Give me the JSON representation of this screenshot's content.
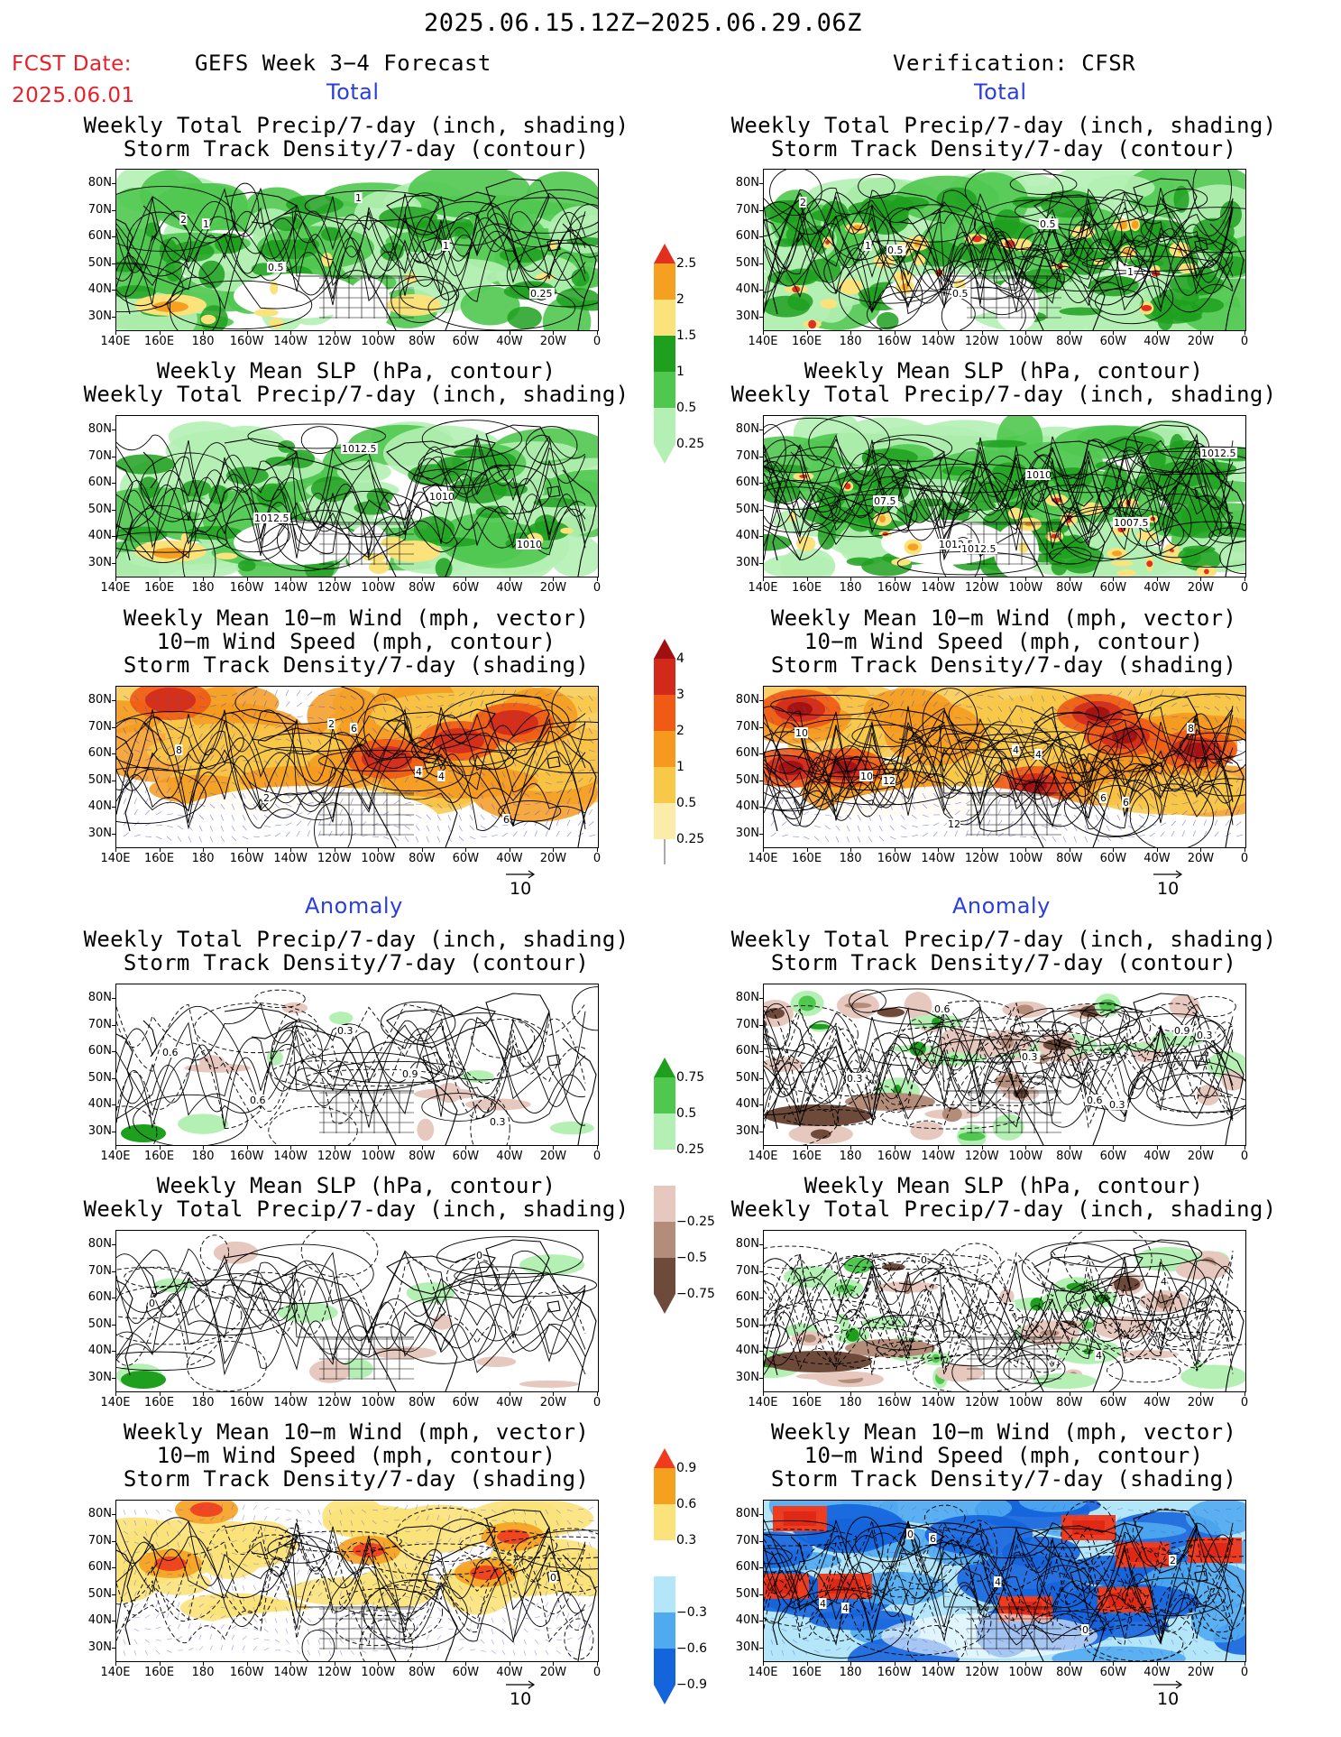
{
  "header": {
    "date_range": "2025.06.15.12Z−2025.06.29.06Z",
    "fcst_label": "FCST Date:",
    "fcst_date": "2025.06.01",
    "left_title": "GEFS Week 3−4 Forecast",
    "right_title": "Verification: CFSR"
  },
  "sections": {
    "total": "Total",
    "anomaly": "Anomaly"
  },
  "titles": {
    "precip_storm": [
      "Weekly Total Precip/7-day (inch, shading)",
      "Storm Track Density/7-day (contour)"
    ],
    "slp_precip": [
      "Weekly Mean SLP (hPa, contour)",
      "Weekly Total Precip/7-day (inch, shading)"
    ],
    "wind_storm": [
      "Weekly Mean 10−m Wind (mph, vector)",
      "10−m Wind Speed (mph, contour)",
      "Storm Track Density/7-day (shading)"
    ]
  },
  "axes": {
    "lat_labels": [
      "80N",
      "70N",
      "60N",
      "50N",
      "40N",
      "30N"
    ],
    "lon_labels": [
      "140E",
      "160E",
      "180",
      "160W",
      "140W",
      "120W",
      "100W",
      "80W",
      "60W",
      "40W",
      "20W",
      "0"
    ]
  },
  "vector_ref": "10",
  "colorbars": {
    "precip_total": {
      "labels": [
        "2.5",
        "2",
        "1.5",
        "1",
        "0.5",
        "0.25"
      ],
      "colors": [
        "#e0301e",
        "#f5a020",
        "#fbe27a",
        "#1ea01e",
        "#50c850",
        "#b4f0b4"
      ]
    },
    "storm_total": {
      "labels": [
        "4",
        "3",
        "2",
        "1",
        "0.5",
        "0.25"
      ],
      "colors": [
        "#a01010",
        "#d22a1a",
        "#f05a14",
        "#f59a1e",
        "#f8c848",
        "#fcecaa"
      ]
    },
    "precip_anom": {
      "labels": [
        "0.75",
        "0.5",
        "0.25",
        "−0.25",
        "−0.5",
        "−0.75"
      ],
      "colors": [
        "#1ea01e",
        "#50c850",
        "#b4f0b4",
        "#e6c8be",
        "#b48c7a",
        "#6e4a3a"
      ]
    },
    "storm_anom": {
      "labels": [
        "0.9",
        "0.6",
        "0.3",
        "−0.3",
        "−0.6",
        "−0.9"
      ],
      "colors": [
        "#f03c1e",
        "#f5a01e",
        "#fbe27a",
        "#b4e6fa",
        "#50aaf0",
        "#1464dc"
      ]
    }
  },
  "contour_labels": {
    "p1": [
      "2",
      "0.5",
      "1",
      "1",
      "0.25",
      "1"
    ],
    "p2": [
      "1",
      "0.5",
      "0.5",
      "1",
      "2",
      "0.5"
    ],
    "p3": [
      "1012.5",
      "1012.5",
      "1010",
      "1010"
    ],
    "p4": [
      "1012.5",
      "1010",
      "1007.5",
      "1012.5",
      "07.5",
      "1012.5"
    ],
    "p5": [
      "2",
      "4",
      "6",
      "8",
      "2",
      "6",
      "4"
    ],
    "p6": [
      "4",
      "6",
      "8",
      "10",
      "12",
      "4",
      "6",
      "10",
      "12"
    ],
    "p7": [
      "0.9",
      "0.3",
      "0.6",
      "0.6",
      "0.3"
    ],
    "p8": [
      "0.6",
      "0.9",
      "0.3",
      "0.6",
      "0.3",
      "0.3",
      "0.3"
    ],
    "p9": [
      "0",
      "0"
    ],
    "p10": [
      "4",
      "2",
      "0",
      "2",
      "4"
    ],
    "p11": [
      "0"
    ],
    "p12": [
      "4",
      "0",
      "4",
      "0",
      "2",
      "4",
      "6"
    ]
  }
}
